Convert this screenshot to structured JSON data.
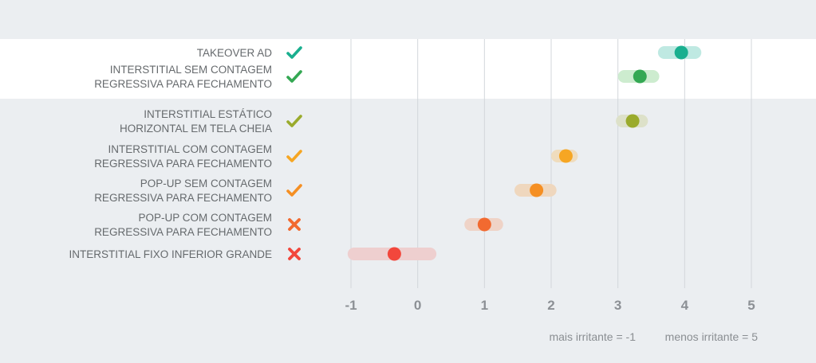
{
  "chart_data": {
    "type": "scatter",
    "title": "",
    "xlabel": "",
    "ylabel": "",
    "xlim": [
      -1,
      5
    ],
    "x_ticks": [
      "-1",
      "0",
      "1",
      "2",
      "3",
      "4",
      "5"
    ],
    "x_tick_values": [
      -1,
      0,
      1,
      2,
      3,
      4,
      5
    ],
    "legend_min": "mais irritante = -1",
    "legend_max": "menos irritante = 5",
    "highlight_group": "top-2 rows on white band",
    "rows": [
      {
        "lines": [
          "TAKEOVER AD"
        ],
        "icon": "check",
        "value": 3.95,
        "range_low": 3.6,
        "range_high": 4.25,
        "color": "#1aaf8f",
        "band_color": "#bfe9e2"
      },
      {
        "lines": [
          "INTERSTITIAL SEM CONTAGEM",
          "REGRESSIVA PARA FECHAMENTO"
        ],
        "icon": "check",
        "value": 3.33,
        "range_low": 3.0,
        "range_high": 3.62,
        "color": "#34a853",
        "band_color": "#cdeccf"
      },
      {
        "lines": [
          "INTERSTITIAL ESTÁTICO",
          "HORIZONTAL EM TELA CHEIA"
        ],
        "icon": "check",
        "value": 3.22,
        "range_low": 2.97,
        "range_high": 3.45,
        "color": "#9aab2c",
        "band_color": "#dde1c9"
      },
      {
        "lines": [
          "INTERSTITIAL COM CONTAGEM",
          "REGRESSIVA PARA FECHAMENTO"
        ],
        "icon": "check",
        "value": 2.22,
        "range_low": 2.0,
        "range_high": 2.4,
        "color": "#f6a623",
        "band_color": "#efdcbd"
      },
      {
        "lines": [
          "POP-UP SEM CONTAGEM",
          "REGRESSIVA PARA FECHAMENTO"
        ],
        "icon": "check",
        "value": 1.78,
        "range_low": 1.45,
        "range_high": 2.08,
        "color": "#f58f23",
        "band_color": "#efd7be"
      },
      {
        "lines": [
          "POP-UP COM CONTAGEM",
          "REGRESSIVA PARA FECHAMENTO"
        ],
        "icon": "cross",
        "value": 1.0,
        "range_low": 0.7,
        "range_high": 1.28,
        "color": "#f26a30",
        "band_color": "#efd3c7"
      },
      {
        "lines": [
          "INTERSTITIAL FIXO INFERIOR GRANDE"
        ],
        "icon": "cross",
        "value": -0.35,
        "range_low": -1.05,
        "range_high": 0.28,
        "color": "#f2473c",
        "band_color": "#eecfcf"
      }
    ]
  }
}
